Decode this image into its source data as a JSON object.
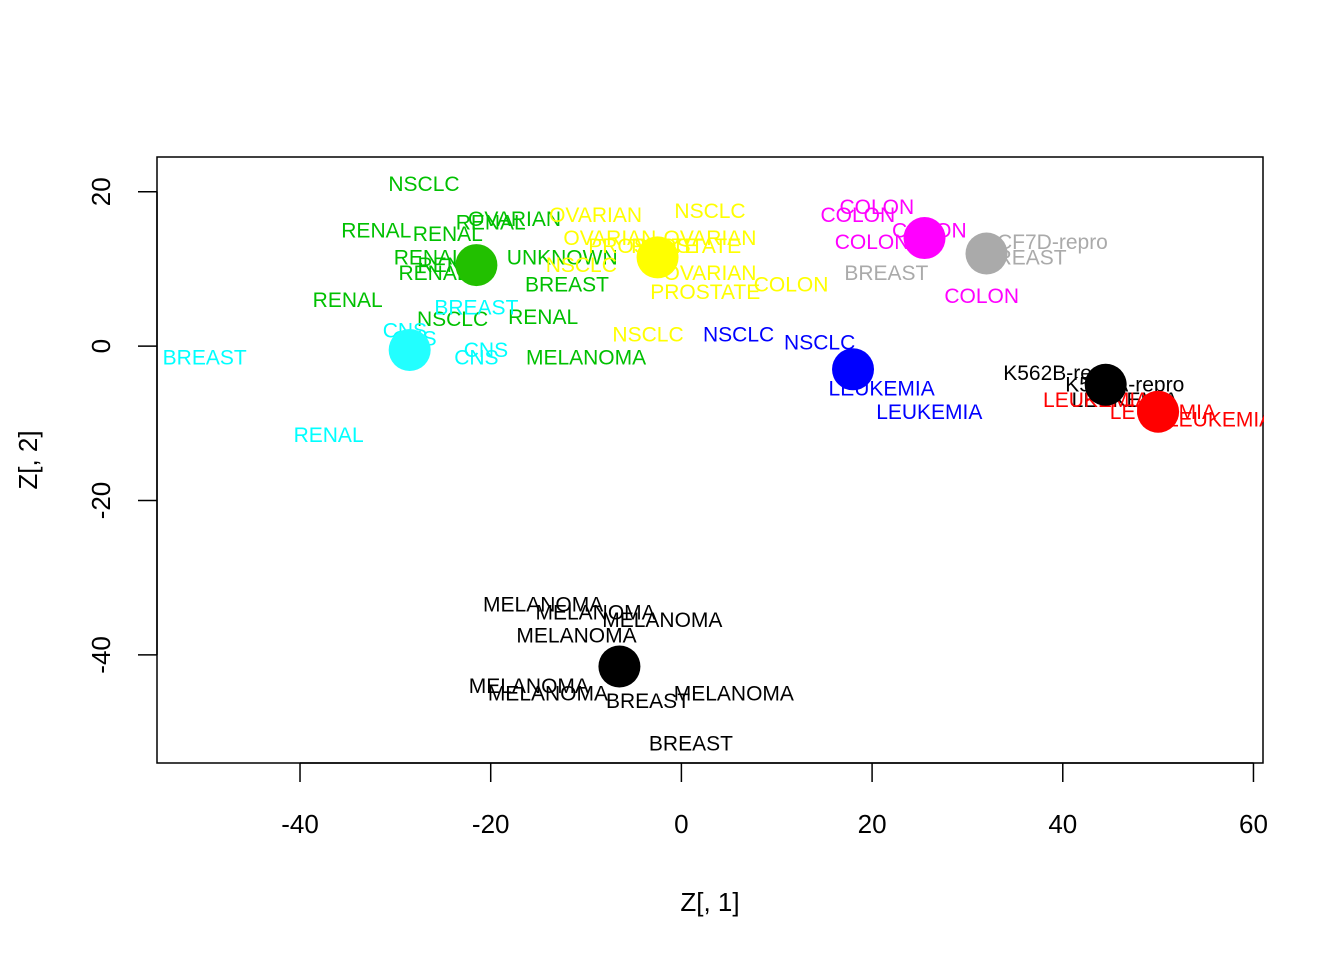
{
  "chart_data": {
    "type": "scatter",
    "title": "",
    "xlabel": "Z[, 1]",
    "ylabel": "Z[, 2]",
    "xlim": [
      -55,
      61
    ],
    "ylim": [
      -54,
      24.5
    ],
    "xticks": [
      -40,
      -20,
      0,
      20,
      40,
      60
    ],
    "yticks": [
      20,
      0,
      -20,
      -40
    ],
    "grid": false,
    "legend": "none",
    "points": [
      {
        "label": "NSCLC",
        "x": -27,
        "y": 21,
        "color": "#00C000"
      },
      {
        "label": "RENAL",
        "x": -32,
        "y": 15,
        "color": "#00C000"
      },
      {
        "label": "RENAL",
        "x": -24.5,
        "y": 14.5,
        "color": "#00C000"
      },
      {
        "label": "RENAL",
        "x": -20,
        "y": 16,
        "color": "#00C000"
      },
      {
        "label": "OVARIAN",
        "x": -17.5,
        "y": 16.5,
        "color": "#00C000"
      },
      {
        "label": "RENAL",
        "x": -26.5,
        "y": 11.5,
        "color": "#00C000"
      },
      {
        "label": "RENAL",
        "x": -26,
        "y": 9.5,
        "color": "#00C000"
      },
      {
        "label": "RENAL",
        "x": -24,
        "y": 10.5,
        "color": "#00C000"
      },
      {
        "label": "UNKNOWN",
        "x": -12.5,
        "y": 11.5,
        "color": "#00C000"
      },
      {
        "label": "BREAST",
        "x": -12,
        "y": 8,
        "color": "#00C000"
      },
      {
        "label": "RENAL",
        "x": -35,
        "y": 6,
        "color": "#00C000"
      },
      {
        "label": "NSCLC",
        "x": -24,
        "y": 3.5,
        "color": "#00C000"
      },
      {
        "label": "RENAL",
        "x": -14.5,
        "y": 3.8,
        "color": "#00C000"
      },
      {
        "label": "MELANOMA",
        "x": -10,
        "y": -1.5,
        "color": "#00C000"
      },
      {
        "label": "OVARIAN",
        "x": -9,
        "y": 17,
        "color": "#FFFF00"
      },
      {
        "label": "NSCLC",
        "x": 3,
        "y": 17.5,
        "color": "#FFFF00"
      },
      {
        "label": "OVARIAN",
        "x": -7.5,
        "y": 14,
        "color": "#FFFF00"
      },
      {
        "label": "OVARIAN",
        "x": 3,
        "y": 14,
        "color": "#FFFF00"
      },
      {
        "label": "PROSTATE",
        "x": -4,
        "y": 13,
        "color": "#FFFF00"
      },
      {
        "label": "PROSTATE",
        "x": 0.5,
        "y": 13,
        "color": "#FFFF00"
      },
      {
        "label": "NSCLC",
        "x": -10.5,
        "y": 10.5,
        "color": "#FFFF00"
      },
      {
        "label": "OVARIAN",
        "x": 3,
        "y": 9.5,
        "color": "#FFFF00"
      },
      {
        "label": "COLON",
        "x": 11.5,
        "y": 8,
        "color": "#FFFF00"
      },
      {
        "label": "PROSTATE",
        "x": 2.5,
        "y": 7,
        "color": "#FFFF00"
      },
      {
        "label": "NSCLC",
        "x": -3.5,
        "y": 1.5,
        "color": "#FFFF00"
      },
      {
        "label": "BREAST",
        "x": -21.5,
        "y": 5,
        "color": "#00FFFF"
      },
      {
        "label": "CNS",
        "x": -29,
        "y": 2,
        "color": "#00FFFF"
      },
      {
        "label": "CNS",
        "x": -28,
        "y": 1,
        "color": "#00FFFF"
      },
      {
        "label": "CNS",
        "x": -20.5,
        "y": -0.5,
        "color": "#00FFFF"
      },
      {
        "label": "CNS",
        "x": -21.5,
        "y": -1.5,
        "color": "#00FFFF"
      },
      {
        "label": "BREAST",
        "x": -50,
        "y": -1.5,
        "color": "#00FFFF"
      },
      {
        "label": "RENAL",
        "x": -37,
        "y": -11.5,
        "color": "#00FFFF"
      },
      {
        "label": "COLON",
        "x": 20.5,
        "y": 18,
        "color": "#FF00FF"
      },
      {
        "label": "COLON",
        "x": 18.5,
        "y": 17,
        "color": "#FF00FF"
      },
      {
        "label": "COLON",
        "x": 26,
        "y": 15,
        "color": "#FF00FF"
      },
      {
        "label": "COLON",
        "x": 20,
        "y": 13.5,
        "color": "#FF00FF"
      },
      {
        "label": "COLON",
        "x": 31.5,
        "y": 6.5,
        "color": "#FF00FF"
      },
      {
        "label": "MCF7D-repro",
        "x": 38,
        "y": 13.5,
        "color": "#AAAAAA"
      },
      {
        "label": "BREAST",
        "x": 36,
        "y": 11.5,
        "color": "#AAAAAA"
      },
      {
        "label": "BREAST",
        "x": 21.5,
        "y": 9.5,
        "color": "#AAAAAA"
      },
      {
        "label": "NSCLC",
        "x": 6,
        "y": 1.5,
        "color": "#0000FF"
      },
      {
        "label": "NSCLC",
        "x": 14.5,
        "y": 0.5,
        "color": "#0000FF"
      },
      {
        "label": "LEUKEMIA",
        "x": 21,
        "y": -5.5,
        "color": "#0000FF"
      },
      {
        "label": "LEUKEMIA",
        "x": 26,
        "y": -8.5,
        "color": "#0000FF"
      },
      {
        "label": "K562B-repro",
        "x": 40,
        "y": -3.5,
        "color": "#000000"
      },
      {
        "label": "K562A-repro",
        "x": 46.5,
        "y": -5,
        "color": "#000000"
      },
      {
        "label": "LEUKEMIA",
        "x": 46.5,
        "y": -7,
        "color": "#000000"
      },
      {
        "label": "LEUKEMIA",
        "x": 43.5,
        "y": -7,
        "color": "#FF0000"
      },
      {
        "label": "LEUKEMIA",
        "x": 50.5,
        "y": -8.5,
        "color": "#FF0000"
      },
      {
        "label": "LEUKEMIA",
        "x": 56.5,
        "y": -9.5,
        "color": "#FF0000"
      },
      {
        "label": "MELANOMA",
        "x": -14.5,
        "y": -33.5,
        "color": "#000000"
      },
      {
        "label": "MELANOMA",
        "x": -9,
        "y": -34.5,
        "color": "#000000"
      },
      {
        "label": "MELANOMA",
        "x": -2,
        "y": -35.5,
        "color": "#000000"
      },
      {
        "label": "MELANOMA",
        "x": -11,
        "y": -37.5,
        "color": "#000000"
      },
      {
        "label": "MELANOMA",
        "x": -16,
        "y": -44,
        "color": "#000000"
      },
      {
        "label": "MELANOMA",
        "x": -14,
        "y": -45,
        "color": "#000000"
      },
      {
        "label": "BREAST",
        "x": -3.5,
        "y": -46,
        "color": "#000000"
      },
      {
        "label": "MELANOMA",
        "x": 5.5,
        "y": -45,
        "color": "#000000"
      },
      {
        "label": "BREAST",
        "x": 1,
        "y": -51.5,
        "color": "#000000"
      }
    ],
    "centroids": [
      {
        "x": -21.5,
        "y": 10.5,
        "color": "#22C000"
      },
      {
        "x": -2.5,
        "y": 11.5,
        "color": "#FFFF00"
      },
      {
        "x": -28.5,
        "y": -0.5,
        "color": "#22FFFF"
      },
      {
        "x": 25.5,
        "y": 14,
        "color": "#FF00FF"
      },
      {
        "x": 32,
        "y": 12,
        "color": "#AAAAAA"
      },
      {
        "x": 18,
        "y": -3,
        "color": "#0000FF"
      },
      {
        "x": 44.5,
        "y": -5,
        "color": "#000000"
      },
      {
        "x": 50,
        "y": -8.5,
        "color": "#FF0000"
      },
      {
        "x": -6.5,
        "y": -41.5,
        "color": "#000000"
      }
    ]
  }
}
